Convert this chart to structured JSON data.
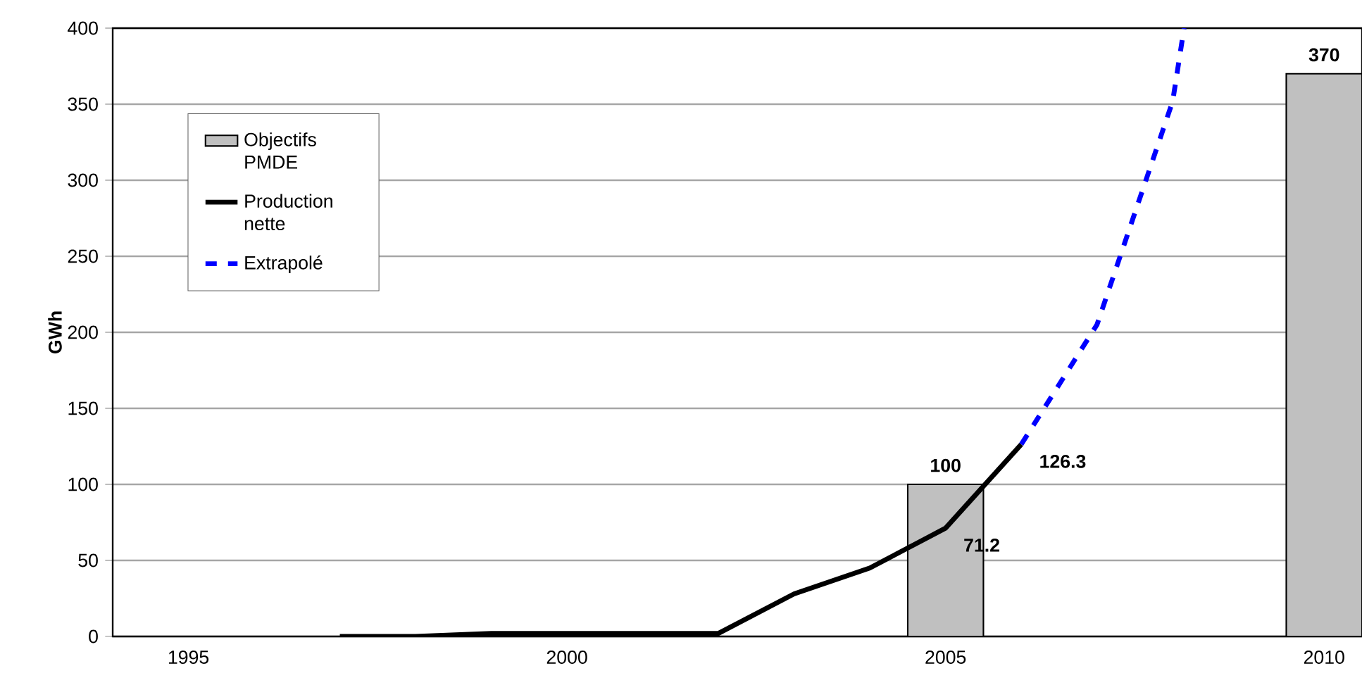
{
  "chart_data": {
    "type": "line",
    "ylabel": "GWh",
    "xlim": [
      1994,
      2010.5
    ],
    "xticks": [
      1995,
      2000,
      2005,
      2010
    ],
    "ylim": [
      0,
      400
    ],
    "yticks": [
      0,
      50,
      100,
      150,
      200,
      250,
      300,
      350,
      400
    ],
    "grid": "y",
    "legend": "top left",
    "series": [
      {
        "name": "Objectifs PMDE",
        "type": "bar",
        "color": "#c0c0c0",
        "x": [
          2005,
          2010
        ],
        "values": [
          100,
          370
        ],
        "value_labels": [
          "100",
          "370"
        ]
      },
      {
        "name": "Production nette",
        "color": "#000000",
        "line_style": "solid",
        "x": [
          1997,
          1998,
          1999,
          2000,
          2001,
          2002,
          2003,
          2004,
          2005,
          2006
        ],
        "values": [
          0,
          0,
          2,
          2,
          2,
          2,
          28,
          45,
          71.2,
          126.3
        ],
        "value_labels": [
          null,
          null,
          null,
          null,
          null,
          null,
          null,
          null,
          "71.2",
          "126.3"
        ]
      },
      {
        "name": "Extrapolé",
        "color": "#0000ff",
        "line_style": "dashed",
        "x": [
          2006,
          2007,
          2008,
          2008.15
        ],
        "values": [
          126.3,
          205,
          352,
          400
        ]
      }
    ]
  }
}
